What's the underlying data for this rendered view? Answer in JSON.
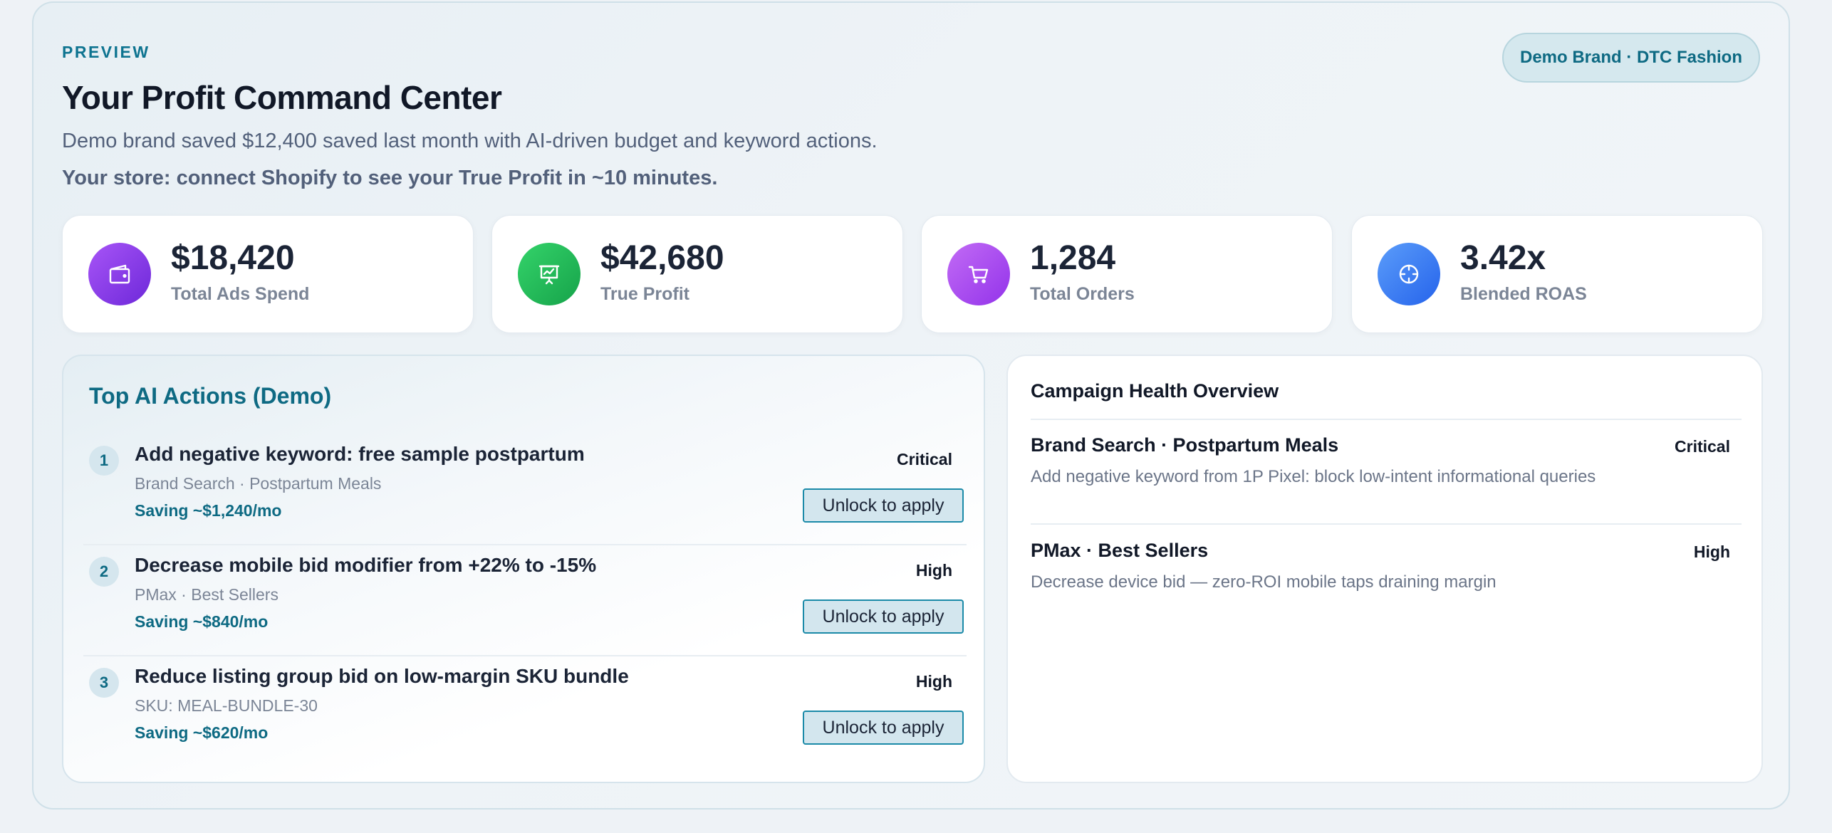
{
  "header": {
    "eyebrow": "PREVIEW",
    "title": "Your Profit Command Center",
    "subtitle": "Demo brand saved $12,400 saved last month with AI-driven budget and keyword actions.",
    "connect_note": "Your store: connect Shopify to see your True Profit in ~10 minutes.",
    "brand_pill": "Demo Brand · DTC Fashion"
  },
  "stats": [
    {
      "value": "$18,420",
      "label": "Total Ads Spend",
      "icon": "wallet-icon",
      "color_from": "#a855f7",
      "color_to": "#6d28d9"
    },
    {
      "value": "$42,680",
      "label": "True Profit",
      "icon": "presentation-chart-icon",
      "color_from": "#34d36a",
      "color_to": "#16a34a"
    },
    {
      "value": "1,284",
      "label": "Total Orders",
      "icon": "cart-icon",
      "color_from": "#c26bf5",
      "color_to": "#9333ea"
    },
    {
      "value": "3.42x",
      "label": "Blended ROAS",
      "icon": "crosshair-icon",
      "color_from": "#5b9dfa",
      "color_to": "#2563eb"
    }
  ],
  "actions": {
    "title": "Top AI Actions (Demo)",
    "button_label": "Unlock to apply",
    "items": [
      {
        "num": "1",
        "title": "Add negative keyword: free sample postpartum",
        "context": "Brand Search · Postpartum Meals",
        "saving": "Saving ~$1,240/mo",
        "severity": "Critical"
      },
      {
        "num": "2",
        "title": "Decrease mobile bid modifier from +22% to -15%",
        "context": "PMax · Best Sellers",
        "saving": "Saving ~$840/mo",
        "severity": "High"
      },
      {
        "num": "3",
        "title": "Reduce listing group bid on low-margin SKU bundle",
        "context": "SKU: MEAL-BUNDLE-30",
        "saving": "Saving ~$620/mo",
        "severity": "High"
      }
    ]
  },
  "health": {
    "title": "Campaign Health Overview",
    "items": [
      {
        "name": "Brand Search · Postpartum Meals",
        "desc": "Add negative keyword from 1P Pixel: block low-intent informational queries",
        "severity": "Critical"
      },
      {
        "name": "PMax · Best Sellers",
        "desc": "Decrease device bid — zero-ROI mobile taps draining margin",
        "severity": "High"
      }
    ]
  }
}
